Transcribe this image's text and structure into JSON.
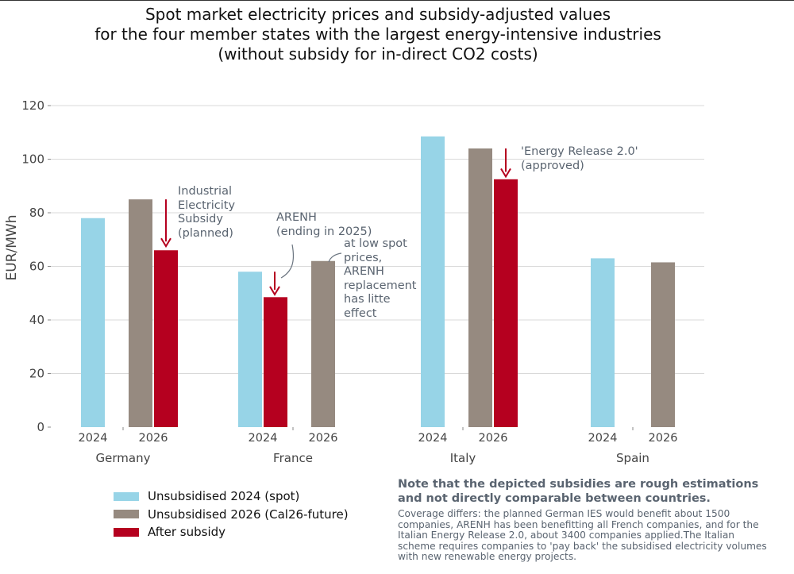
{
  "title": {
    "line1": "Spot market electricity prices and subsidy-adjusted values",
    "line2": "for the four member states with the largest energy-intensive industries",
    "line3": "(without subsidy for in-direct CO2 costs)"
  },
  "colors": {
    "unsubsidised_2024": "#97d4e7",
    "unsubsidised_2026": "#968a80",
    "after_subsidy": "#b5001f",
    "arrow": "#b5001f",
    "annotation_text": "#5a6470",
    "grid": "#d9d9d9"
  },
  "chart_data": {
    "type": "bar",
    "ylabel": "EUR/MWh",
    "ylim": [
      0,
      120
    ],
    "yticks": [
      0,
      20,
      40,
      60,
      80,
      100,
      120
    ],
    "grid": true,
    "legend_position": "bottom-left",
    "groups": [
      {
        "country": "Germany",
        "year_labels": [
          "2024",
          "2026"
        ],
        "spot_2024": 78,
        "cal26_2026": 85,
        "after_subsidy": 66
      },
      {
        "country": "France",
        "year_labels": [
          "2024",
          "2026"
        ],
        "spot_2024": 58,
        "after_subsidy": 48.5,
        "cal26_2026": 62
      },
      {
        "country": "Italy",
        "year_labels": [
          "2024",
          "2026"
        ],
        "spot_2024": 108.5,
        "cal26_2026": 104,
        "after_subsidy": 92.5
      },
      {
        "country": "Spain",
        "year_labels": [
          "2024",
          "2026"
        ],
        "spot_2024": 63,
        "cal26_2026": 61.5
      }
    ],
    "series": [
      {
        "name": "Unsubsidised 2024 (spot)"
      },
      {
        "name": "Unsubsidised 2026 (Cal26-future)"
      },
      {
        "name": "After subsidy"
      }
    ]
  },
  "annotations": {
    "germany": [
      "Industrial",
      "Electricity",
      "Subsidy",
      "(planned)"
    ],
    "france_arenh": [
      "ARENH",
      "(ending in 2025)"
    ],
    "france_low": [
      "at low spot",
      "prices,",
      "ARENH",
      "replacement",
      "has litte",
      "effect"
    ],
    "italy": [
      "'Energy Release 2.0'",
      "(approved)"
    ]
  },
  "legend": {
    "items": [
      "Unsubsidised 2024 (spot)",
      "Unsubsidised 2026 (Cal26-future)",
      "After subsidy"
    ]
  },
  "note": {
    "heading_line1": "Note that the depicted subsidies are rough estimations",
    "heading_line2": "and not directly comparable between countries.",
    "body": [
      "Coverage differs: the planned German IES would benefit about 1500",
      "companies, ARENH has been benefitting all French companies, and for the",
      "Italian Energy Release 2.0, about 3400 companies applied.The Italian",
      "scheme requires companies to 'pay back' the subsidised electricity volumes",
      "with new renewable energy projects."
    ]
  }
}
